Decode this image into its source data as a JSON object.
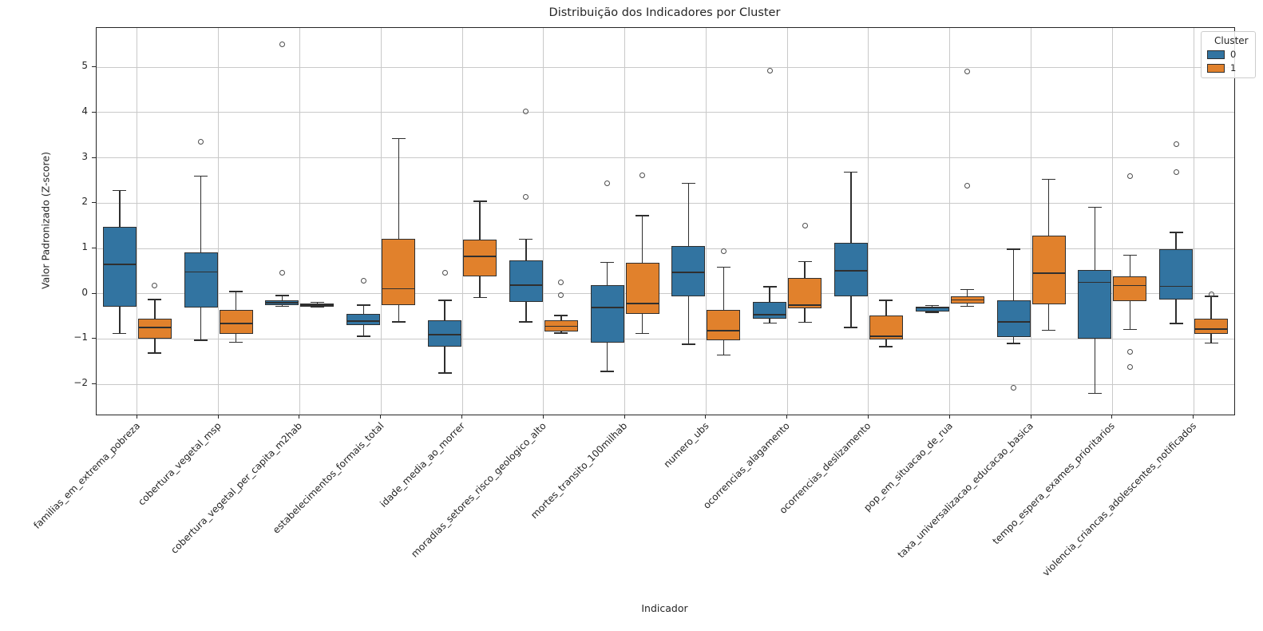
{
  "chart_data": {
    "type": "grouped_boxplot",
    "title": "Distribuição dos Indicadores por Cluster",
    "xlabel": "Indicador",
    "ylabel": "Valor Padronizado (Z-score)",
    "ylim": [
      -2.67,
      5.87
    ],
    "yticks": [
      -2,
      -1,
      0,
      1,
      2,
      3,
      4,
      5
    ],
    "grid": true,
    "legend": {
      "title": "Cluster",
      "position": "upper right"
    },
    "colors": {
      "cluster0": "#3274A1",
      "cluster1": "#E1812C",
      "edge": "#2F2F2F",
      "grid": "#C9C9C9"
    },
    "categories": [
      "familias_em_extrema_pobreza",
      "cobertura_vegetal_msp",
      "cobertura_vegetal_per_capita_m2hab",
      "estabelecimentos_formais_total",
      "idade_media_ao_morrer",
      "moradias_setores_risco_geologico_alto",
      "mortes_transito_100milhab",
      "numero_ubs",
      "ocorrencias_alagamento",
      "ocorrencias_deslizamento",
      "pop_em_situacao_de_rua",
      "taxa_universalizacao_educacao_basica",
      "tempo_espera_exames_prioritarios",
      "violencia_criancas_adolescentes_notificados"
    ],
    "series": [
      {
        "name": "0",
        "color": "#3274A1",
        "boxes": [
          {
            "whislo": -0.88,
            "q1": -0.29,
            "med": 0.65,
            "q3": 1.47,
            "whishi": 2.28,
            "fliers": []
          },
          {
            "whislo": -1.03,
            "q1": -0.31,
            "med": 0.48,
            "q3": 0.91,
            "whishi": 2.6,
            "fliers": [
              3.35
            ]
          },
          {
            "whislo": -0.28,
            "q1": -0.25,
            "med": -0.2,
            "q3": -0.15,
            "whishi": -0.04,
            "fliers": [
              5.5,
              0.47
            ]
          },
          {
            "whislo": -0.94,
            "q1": -0.7,
            "med": -0.6,
            "q3": -0.44,
            "whishi": -0.25,
            "fliers": [
              0.28
            ]
          },
          {
            "whislo": -1.75,
            "q1": -1.17,
            "med": -0.9,
            "q3": -0.59,
            "whishi": -0.15,
            "fliers": [
              0.47
            ]
          },
          {
            "whislo": -0.62,
            "q1": -0.18,
            "med": 0.19,
            "q3": 0.74,
            "whishi": 1.2,
            "fliers": [
              4.03,
              2.13
            ]
          },
          {
            "whislo": -1.72,
            "q1": -1.09,
            "med": -0.31,
            "q3": 0.18,
            "whishi": 0.69,
            "fliers": [
              2.44
            ]
          },
          {
            "whislo": -1.12,
            "q1": -0.05,
            "med": 0.47,
            "q3": 1.06,
            "whishi": 2.44,
            "fliers": []
          },
          {
            "whislo": -0.65,
            "q1": -0.55,
            "med": -0.47,
            "q3": -0.18,
            "whishi": 0.15,
            "fliers": [
              4.92
            ]
          },
          {
            "whislo": -0.75,
            "q1": -0.06,
            "med": 0.5,
            "q3": 1.12,
            "whishi": 2.68,
            "fliers": []
          },
          {
            "whislo": -0.41,
            "q1": -0.39,
            "med": -0.31,
            "q3": -0.28,
            "whishi": -0.26,
            "fliers": []
          },
          {
            "whislo": -1.1,
            "q1": -0.96,
            "med": -0.62,
            "q3": -0.15,
            "whishi": 0.98,
            "fliers": [
              -2.08
            ]
          },
          {
            "whislo": -2.2,
            "q1": -0.99,
            "med": 0.25,
            "q3": 0.53,
            "whishi": 1.91,
            "fliers": []
          },
          {
            "whislo": -0.66,
            "q1": -0.13,
            "med": 0.16,
            "q3": 0.98,
            "whishi": 1.35,
            "fliers": [
              3.3,
              2.68
            ]
          }
        ]
      },
      {
        "name": "1",
        "color": "#E1812C",
        "boxes": [
          {
            "whislo": -1.31,
            "q1": -1.0,
            "med": -0.75,
            "q3": -0.56,
            "whishi": -0.13,
            "fliers": [
              0.18
            ]
          },
          {
            "whislo": -1.07,
            "q1": -0.88,
            "med": -0.66,
            "q3": -0.35,
            "whishi": 0.05,
            "fliers": []
          },
          {
            "whislo": -0.3,
            "q1": -0.28,
            "med": -0.25,
            "q3": -0.22,
            "whishi": -0.19,
            "fliers": []
          },
          {
            "whislo": -0.62,
            "q1": -0.26,
            "med": 0.11,
            "q3": 1.21,
            "whishi": 3.43,
            "fliers": []
          },
          {
            "whislo": -0.09,
            "q1": 0.39,
            "med": 0.82,
            "q3": 1.19,
            "whishi": 2.04,
            "fliers": []
          },
          {
            "whislo": -0.87,
            "q1": -0.83,
            "med": -0.72,
            "q3": -0.59,
            "whishi": -0.48,
            "fliers": [
              0.25,
              -0.03
            ]
          },
          {
            "whislo": -0.88,
            "q1": -0.44,
            "med": -0.22,
            "q3": 0.69,
            "whishi": 1.72,
            "fliers": [
              2.62
            ]
          },
          {
            "whislo": -1.36,
            "q1": -1.03,
            "med": -0.82,
            "q3": -0.35,
            "whishi": 0.59,
            "fliers": [
              0.94
            ]
          },
          {
            "whislo": -0.63,
            "q1": -0.32,
            "med": -0.25,
            "q3": 0.35,
            "whishi": 0.71,
            "fliers": [
              1.51
            ]
          },
          {
            "whislo": -1.17,
            "q1": -1.02,
            "med": -0.94,
            "q3": -0.49,
            "whishi": -0.15,
            "fliers": []
          },
          {
            "whislo": -0.28,
            "q1": -0.22,
            "med": -0.14,
            "q3": -0.05,
            "whishi": 0.09,
            "fliers": [
              4.9,
              2.38
            ]
          },
          {
            "whislo": -0.81,
            "q1": -0.23,
            "med": 0.45,
            "q3": 1.29,
            "whishi": 2.53,
            "fliers": []
          },
          {
            "whislo": -0.79,
            "q1": -0.16,
            "med": 0.18,
            "q3": 0.39,
            "whishi": 0.85,
            "fliers": [
              2.59,
              -1.28,
              -1.62
            ]
          },
          {
            "whislo": -1.09,
            "q1": -0.88,
            "med": -0.78,
            "q3": -0.56,
            "whishi": -0.06,
            "fliers": [
              -0.02
            ]
          }
        ]
      }
    ]
  }
}
